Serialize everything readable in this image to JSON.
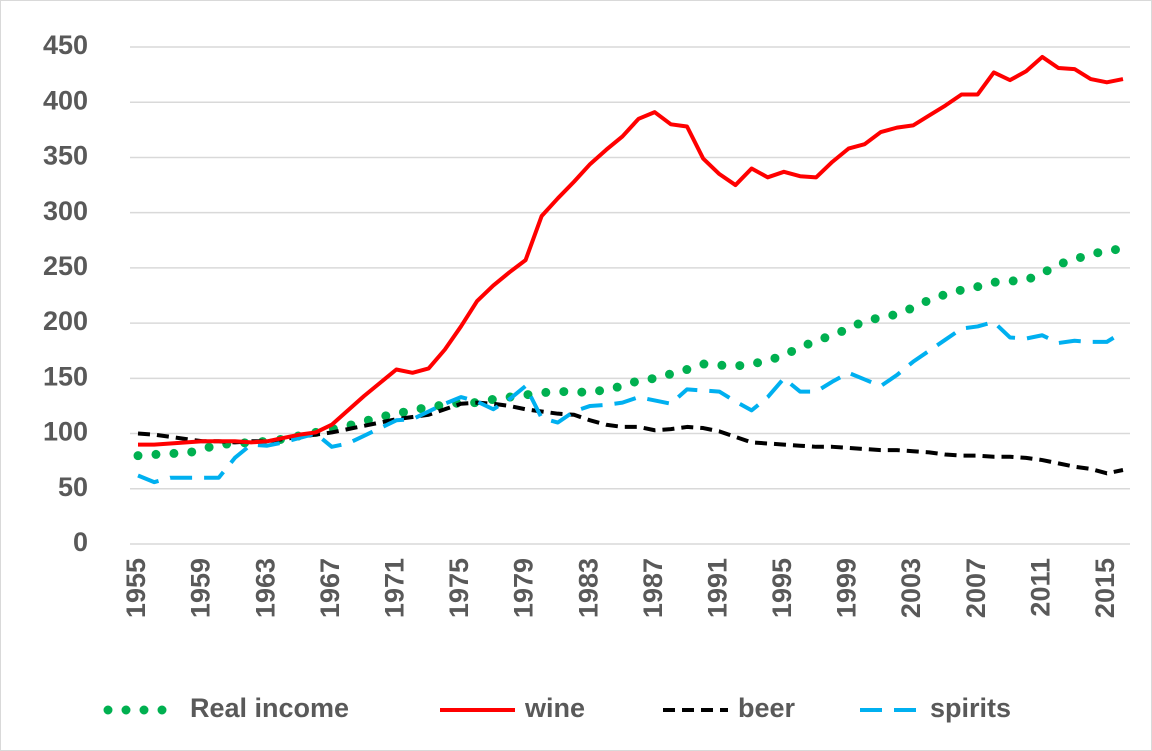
{
  "chart_data": {
    "type": "line",
    "x": [
      1955,
      1956,
      1957,
      1958,
      1959,
      1960,
      1961,
      1962,
      1963,
      1964,
      1965,
      1966,
      1967,
      1968,
      1969,
      1970,
      1971,
      1972,
      1973,
      1974,
      1975,
      1976,
      1977,
      1978,
      1979,
      1980,
      1981,
      1982,
      1983,
      1984,
      1985,
      1986,
      1987,
      1988,
      1989,
      1990,
      1991,
      1992,
      1993,
      1994,
      1995,
      1996,
      1997,
      1998,
      1999,
      2000,
      2001,
      2002,
      2003,
      2004,
      2005,
      2006,
      2007,
      2008,
      2009,
      2010,
      2011,
      2012,
      2013,
      2014,
      2015,
      2016
    ],
    "xlim": [
      1955,
      2016
    ],
    "xticks": [
      1955,
      1959,
      1963,
      1967,
      1971,
      1975,
      1979,
      1983,
      1987,
      1991,
      1995,
      1999,
      2003,
      2007,
      2011,
      2015
    ],
    "ylim": [
      0,
      450
    ],
    "yticks": [
      0,
      50,
      100,
      150,
      200,
      250,
      300,
      350,
      400,
      450
    ],
    "grid": true,
    "legend": "bottom",
    "series": [
      {
        "name": "Real income",
        "color": "#00b050",
        "dash": "dot",
        "values": [
          80,
          81,
          82,
          82,
          86,
          90,
          91,
          92,
          93,
          95,
          98,
          101,
          104,
          107,
          111,
          115,
          118,
          121,
          124,
          126,
          128,
          128,
          131,
          133,
          135,
          137,
          138,
          138,
          137,
          140,
          143,
          148,
          150,
          154,
          158,
          163,
          162,
          161,
          163,
          166,
          171,
          178,
          184,
          189,
          195,
          202,
          205,
          208,
          214,
          221,
          226,
          230,
          233,
          237,
          238,
          239,
          245,
          253,
          258,
          262,
          266,
          267
        ]
      },
      {
        "name": "wine",
        "color": "#ff0000",
        "dash": "solid",
        "values": [
          90,
          90,
          91,
          92,
          93,
          93,
          93,
          92,
          93,
          96,
          99,
          101,
          108,
          121,
          134,
          146,
          158,
          155,
          159,
          176,
          197,
          220,
          234,
          246,
          257,
          297,
          313,
          328,
          344,
          357,
          369,
          385,
          391,
          380,
          378,
          349,
          335,
          325,
          340,
          332,
          337,
          333,
          332,
          346,
          358,
          362,
          373,
          377,
          379,
          388,
          397,
          407,
          407,
          427,
          420,
          428,
          441,
          431,
          430,
          421,
          418,
          421
        ]
      },
      {
        "name": "beer",
        "color": "#000000",
        "dash": "dash",
        "values": [
          100,
          99,
          97,
          95,
          93,
          93,
          92,
          93,
          93,
          95,
          97,
          99,
          101,
          104,
          107,
          110,
          113,
          115,
          117,
          122,
          127,
          128,
          127,
          125,
          122,
          120,
          118,
          117,
          112,
          108,
          106,
          106,
          103,
          104,
          106,
          105,
          102,
          97,
          92,
          91,
          90,
          89,
          88,
          88,
          87,
          86,
          85,
          85,
          84,
          83,
          81,
          80,
          80,
          79,
          79,
          78,
          76,
          73,
          70,
          68,
          64,
          67
        ]
      },
      {
        "name": "spirits",
        "color": "#00b0f0",
        "dash": "longdash",
        "values": [
          62,
          56,
          60,
          60,
          60,
          60,
          78,
          90,
          89,
          92,
          96,
          100,
          88,
          91,
          98,
          105,
          112,
          113,
          120,
          127,
          133,
          129,
          122,
          131,
          143,
          114,
          110,
          120,
          125,
          126,
          128,
          133,
          130,
          127,
          140,
          139,
          138,
          129,
          121,
          133,
          150,
          138,
          138,
          147,
          155,
          149,
          143,
          153,
          165,
          175,
          185,
          195,
          197,
          201,
          187,
          186,
          189,
          182,
          184,
          183,
          183,
          192
        ]
      }
    ]
  }
}
